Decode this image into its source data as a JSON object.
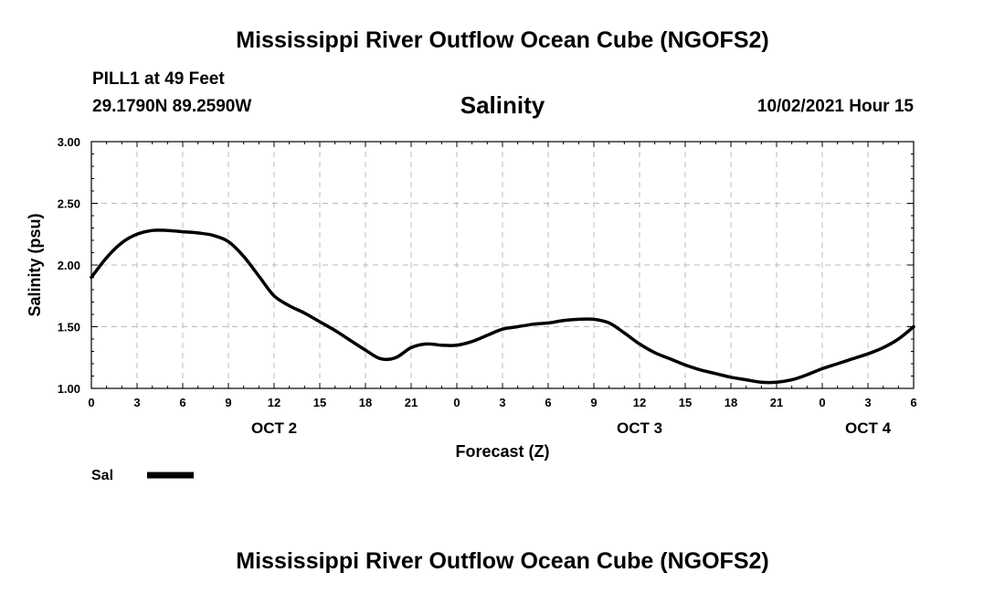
{
  "header": {
    "title": "Mississippi River Outflow Ocean Cube (NGOFS2)",
    "station": "PILL1 at 49 Feet",
    "coords": "29.1790N  89.2590W",
    "variable": "Salinity",
    "datetime": "10/02/2021 Hour 15"
  },
  "footer": {
    "title": "Mississippi River Outflow Ocean Cube (NGOFS2)"
  },
  "chart_data": {
    "type": "line",
    "title": "Salinity",
    "xlabel": "Forecast (Z)",
    "ylabel": "Salinity (psu)",
    "xlim": [
      0,
      54
    ],
    "ylim": [
      1.0,
      3.0
    ],
    "grid": true,
    "yticks": [
      1.0,
      1.5,
      2.0,
      2.5,
      3.0
    ],
    "ytick_labels": [
      "1.00",
      "1.50",
      "2.00",
      "2.50",
      "3.00"
    ],
    "xticks": [
      0,
      3,
      6,
      9,
      12,
      15,
      18,
      21,
      24,
      27,
      30,
      33,
      36,
      39,
      42,
      45,
      48,
      51,
      54
    ],
    "xtick_labels": [
      "0",
      "3",
      "6",
      "9",
      "12",
      "15",
      "18",
      "21",
      "0",
      "3",
      "6",
      "9",
      "12",
      "15",
      "18",
      "21",
      "0",
      "3",
      "6"
    ],
    "date_labels": [
      {
        "label": "OCT 2",
        "x": 12
      },
      {
        "label": "OCT 3",
        "x": 36
      },
      {
        "label": "OCT 4",
        "x": 51
      }
    ],
    "legend": {
      "position": "bottom-left",
      "entries": [
        "Sal"
      ]
    },
    "series": [
      {
        "name": "Sal",
        "x": [
          0,
          1,
          2,
          3,
          4,
          5,
          6,
          7,
          8,
          9,
          10,
          11,
          12,
          13,
          14,
          15,
          16,
          17,
          18,
          19,
          20,
          21,
          22,
          23,
          24,
          25,
          26,
          27,
          28,
          29,
          30,
          31,
          32,
          33,
          34,
          35,
          36,
          37,
          38,
          39,
          40,
          41,
          42,
          43,
          44,
          45,
          46,
          47,
          48,
          49,
          50,
          51,
          52,
          53,
          54
        ],
        "values": [
          1.9,
          2.06,
          2.18,
          2.25,
          2.28,
          2.28,
          2.27,
          2.26,
          2.24,
          2.19,
          2.07,
          1.91,
          1.75,
          1.67,
          1.61,
          1.54,
          1.47,
          1.39,
          1.31,
          1.24,
          1.25,
          1.33,
          1.36,
          1.35,
          1.35,
          1.38,
          1.43,
          1.48,
          1.5,
          1.52,
          1.53,
          1.55,
          1.56,
          1.56,
          1.53,
          1.45,
          1.36,
          1.29,
          1.24,
          1.19,
          1.15,
          1.12,
          1.09,
          1.07,
          1.05,
          1.05,
          1.07,
          1.11,
          1.16,
          1.2,
          1.24,
          1.28,
          1.33,
          1.4,
          1.5
        ]
      }
    ]
  }
}
